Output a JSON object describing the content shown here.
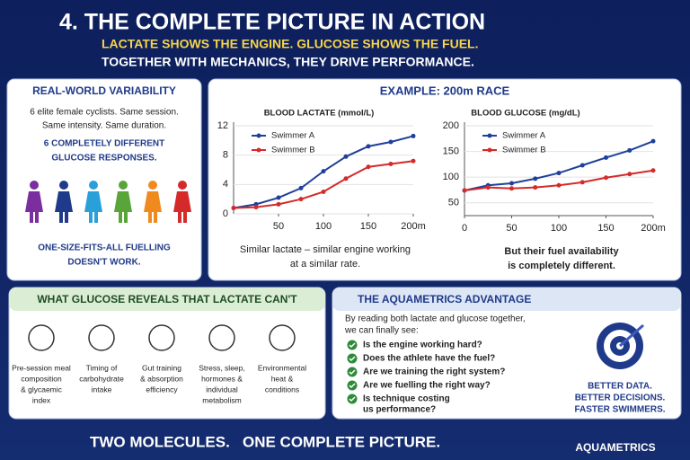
{
  "header": {
    "title": "4. THE COMPLETE PICTURE IN ACTION",
    "subtitle_1": "LACTATE SHOWS THE ENGINE. GLUCOSE SHOWS THE FUEL.",
    "subtitle_2": "TOGETHER WITH MECHANICS, THEY DRIVE PERFORMANCE."
  },
  "variability": {
    "title": "REAL-WORLD VARIABILITY",
    "lines": [
      "6 elite female cyclists. Same session.",
      "Same intensity. Same duration."
    ],
    "highlight": [
      "6 COMPLETELY DIFFERENT",
      "GLUCOSE RESPONSES."
    ],
    "conclusion": [
      "ONE-SIZE-FITS-ALL FUELLING",
      "DOESN'T WORK."
    ]
  },
  "example": {
    "title": "EXAMPLE: 200m RACE",
    "caption_left": [
      "Similar lactate – similar engine working",
      "at a similar rate."
    ],
    "caption_right": [
      "But their fuel availability",
      "is completely different."
    ]
  },
  "chart_data": [
    {
      "type": "line",
      "title": "BLOOD LACTATE (mmol/L)",
      "x": [
        0,
        25,
        50,
        75,
        100,
        125,
        150,
        175,
        200
      ],
      "series": [
        {
          "name": "Swimmer A",
          "color": "#1f3f9a",
          "values": [
            0.8,
            1.3,
            2.2,
            3.5,
            5.8,
            7.8,
            9.2,
            9.8,
            10.6
          ]
        },
        {
          "name": "Swimmer B",
          "color": "#d42a2a",
          "values": [
            0.8,
            0.9,
            1.3,
            2.0,
            3.0,
            4.8,
            6.4,
            6.8,
            7.2
          ]
        }
      ],
      "xlim": [
        0,
        200
      ],
      "xticks": [
        50,
        100,
        150,
        {
          "value": 200,
          "label": "200m"
        }
      ],
      "ylim": [
        0,
        12
      ],
      "yticks": [
        0,
        4,
        8,
        12
      ]
    },
    {
      "type": "line",
      "title": "BLOOD GLUCOSE (mg/dL)",
      "x": [
        0,
        25,
        50,
        75,
        100,
        125,
        150,
        175,
        200
      ],
      "series": [
        {
          "name": "Swimmer A",
          "color": "#1f3f9a",
          "values": [
            74,
            84,
            88,
            97,
            108,
            123,
            138,
            152,
            170
          ]
        },
        {
          "name": "Swimmer B",
          "color": "#d42a2a",
          "values": [
            74,
            80,
            78,
            80,
            84,
            90,
            99,
            106,
            113
          ]
        }
      ],
      "xlim": [
        0,
        200
      ],
      "xticks": [
        0,
        50,
        100,
        150,
        {
          "value": 200,
          "label": "200m"
        }
      ],
      "ylim": [
        25,
        200
      ],
      "yticks": [
        50,
        100,
        150,
        200
      ]
    }
  ],
  "glucose_reveals": {
    "title": "WHAT GLUCOSE REVEALS THAT LACTATE CAN'T",
    "items": [
      {
        "lines": [
          "Pre-session meal",
          "composition",
          "& glycaemic",
          "index"
        ]
      },
      {
        "lines": [
          "Timing of",
          "carbohydrate",
          "intake"
        ]
      },
      {
        "lines": [
          "Gut training",
          "& absorption",
          "efficiency"
        ]
      },
      {
        "lines": [
          "Stress, sleep,",
          "hormones &",
          "individual",
          "metabolism"
        ]
      },
      {
        "lines": [
          "Environmental",
          "heat &",
          "conditions"
        ]
      }
    ]
  },
  "advantage": {
    "title": "THE AQUAMETRICS ADVANTAGE",
    "intro": [
      "By reading both lactate and glucose together,",
      "we can finally see:"
    ],
    "questions": [
      [
        "Is the engine working hard?"
      ],
      [
        "Does the athlete have the fuel?"
      ],
      [
        "Are we training the right system?"
      ],
      [
        "Are we fuelling the right way?"
      ],
      [
        "Is technique costing",
        "us performance?"
      ]
    ],
    "tagline": [
      "BETTER DATA.",
      "BETTER DECISIONS.",
      "FASTER SWIMMERS."
    ]
  },
  "footer": {
    "slogan": "TWO MOLECULES.   ONE COMPLETE PICTURE.",
    "brand": "AQUAMETRICS"
  }
}
